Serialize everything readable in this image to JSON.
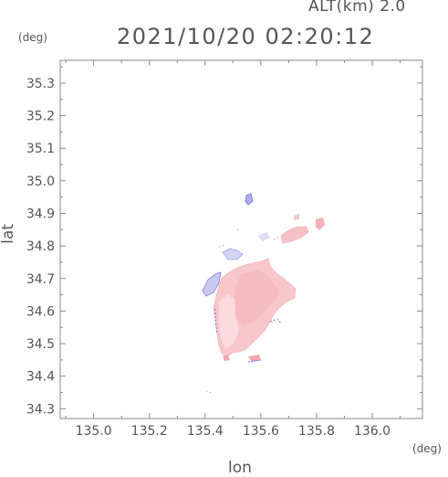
{
  "header": {
    "alt_label": "ALT(km) 2.0",
    "datetime": "2021/10/20 02:20:12"
  },
  "axes": {
    "y_unit": "(deg)",
    "x_unit": "(deg)",
    "x_label": "lon",
    "y_label": "lat"
  },
  "chart_data": {
    "type": "heatmap",
    "title": "2021/10/20 02:20:12",
    "xlabel": "lon",
    "ylabel": "lat",
    "xlim": [
      134.88,
      136.18
    ],
    "ylim": [
      34.27,
      35.37
    ],
    "x_ticks": [
      "135.0",
      "135.2",
      "135.4",
      "135.6",
      "135.8",
      "136.0"
    ],
    "y_ticks": [
      "34.3",
      "34.4",
      "34.5",
      "34.6",
      "34.7",
      "34.8",
      "34.9",
      "35.0",
      "35.1",
      "35.2",
      "35.3"
    ],
    "grid": false,
    "colors": {
      "positive": "#f7c6c8",
      "positive_strong": "#f2a8ad",
      "negative": "#c8c8f2",
      "negative_strong": "#7070e8"
    }
  }
}
